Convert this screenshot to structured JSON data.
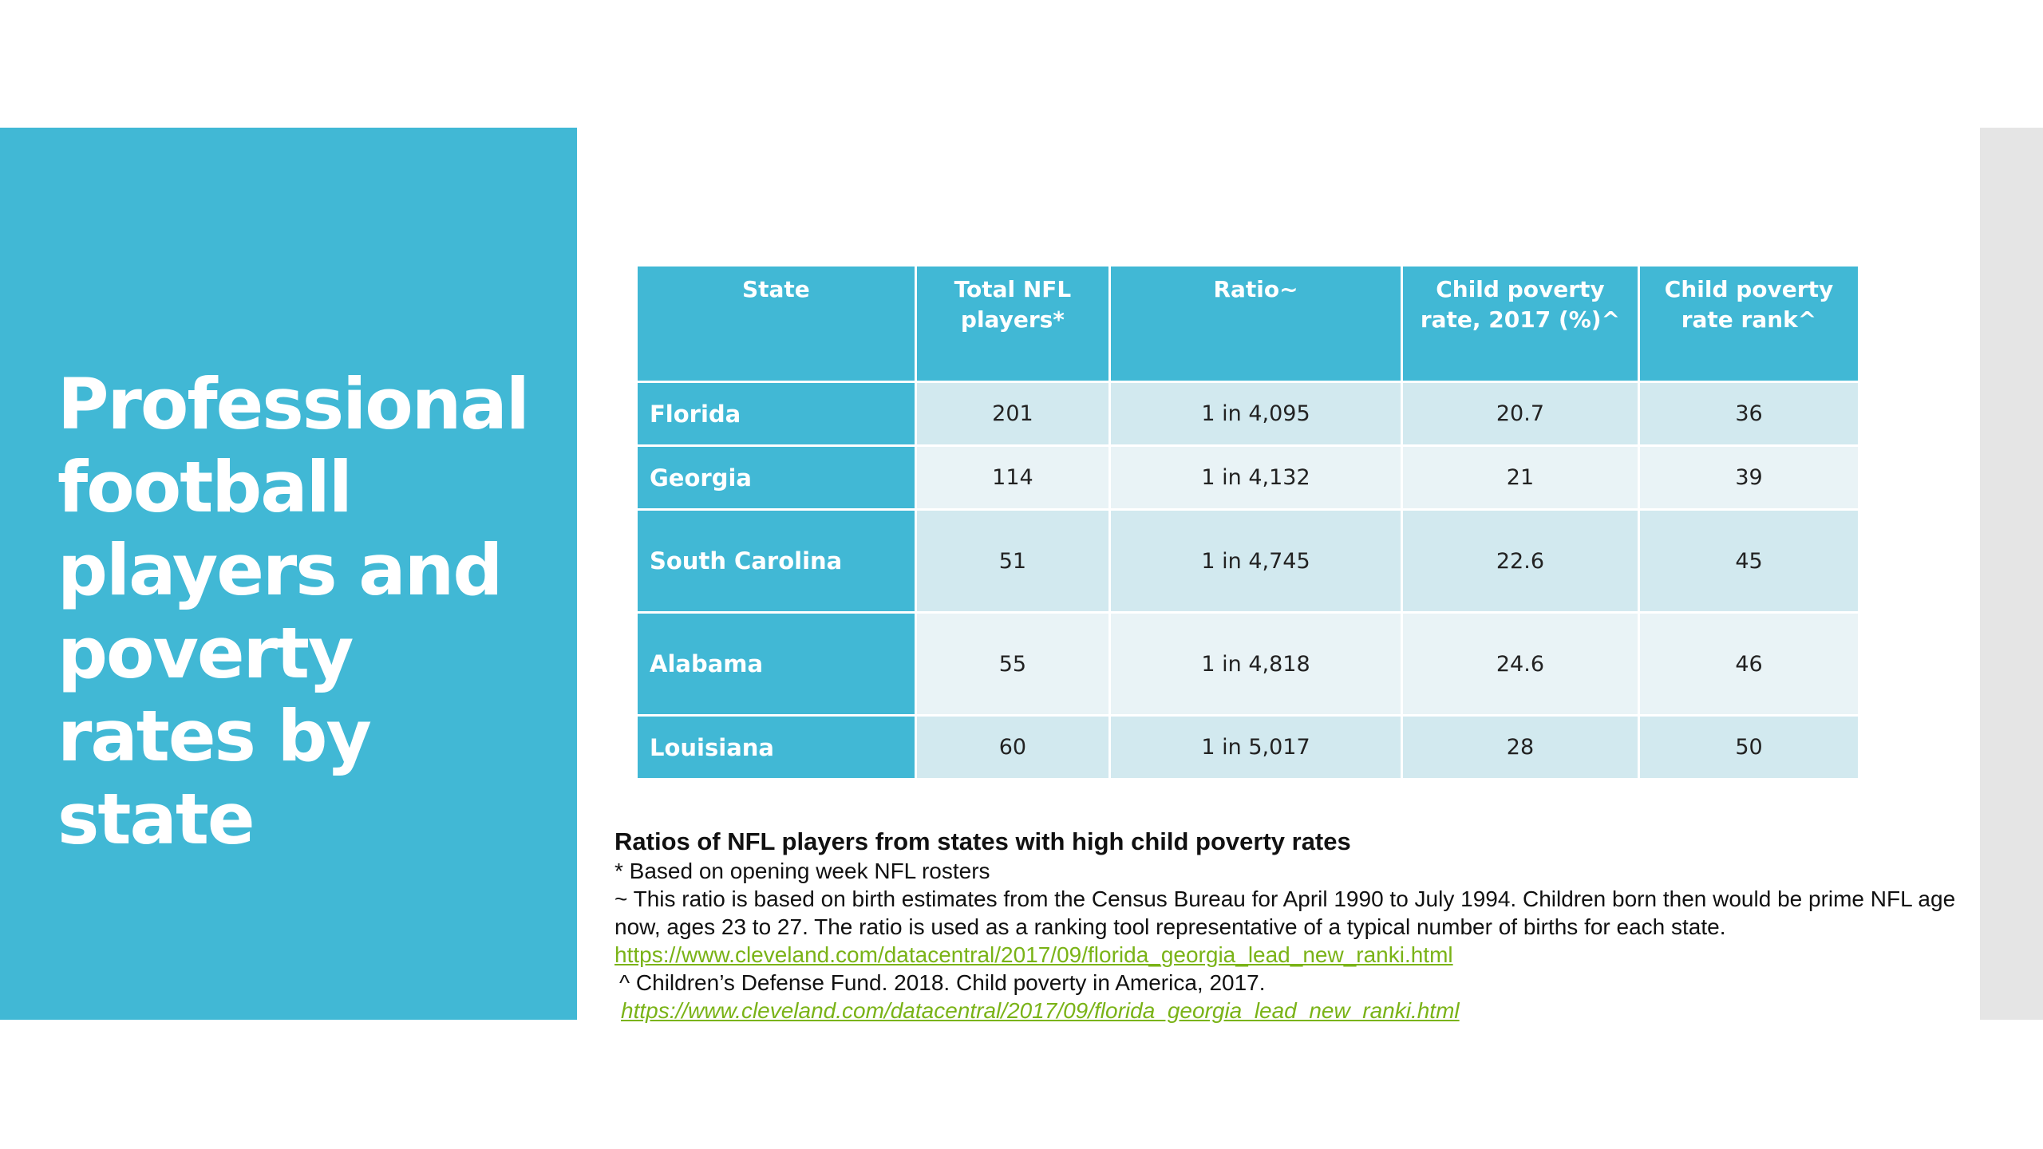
{
  "slide": {
    "title": "Professional football players and poverty rates by state",
    "accent_color": "#41b8d5"
  },
  "table": {
    "headers": [
      "State",
      "Total NFL players*",
      "Ratio~",
      "Child poverty rate, 2017 (%)^",
      "Child poverty rate rank^"
    ],
    "rows": [
      {
        "state": "Florida",
        "players": "201",
        "ratio": "1 in 4,095",
        "poverty_rate": "20.7",
        "rank": "36"
      },
      {
        "state": "Georgia",
        "players": "114",
        "ratio": "1 in 4,132",
        "poverty_rate": "21",
        "rank": "39"
      },
      {
        "state": "South Carolina",
        "players": "51",
        "ratio": "1 in 4,745",
        "poverty_rate": "22.6",
        "rank": "45"
      },
      {
        "state": "Alabama",
        "players": "55",
        "ratio": "1 in 4,818",
        "poverty_rate": "24.6",
        "rank": "46"
      },
      {
        "state": "Louisiana",
        "players": "60",
        "ratio": "1 in 5,017",
        "poverty_rate": "28",
        "rank": "50"
      }
    ]
  },
  "footnotes": {
    "title": "Ratios of NFL players from states with high child poverty rates",
    "note_star": "* Based on opening week NFL rosters",
    "note_tilde": "~ This ratio is based on birth estimates from the Census Bureau for April 1990 to July 1994. Children born then would be prime NFL age now, ages 23 to 27. The ratio is used as a ranking tool representative of a typical number of births for each state.",
    "link_1": "https://www.cleveland.com/datacentral/2017/09/florida_georgia_lead_new_ranki.html",
    "note_caret": "^ Children’s Defense Fund. 2018. Child poverty in America, 2017.",
    "link_2": "https://www.cleveland.com/datacentral/2017/09/florida_georgia_lead_new_ranki.html",
    "link_color": "#7ab317"
  }
}
